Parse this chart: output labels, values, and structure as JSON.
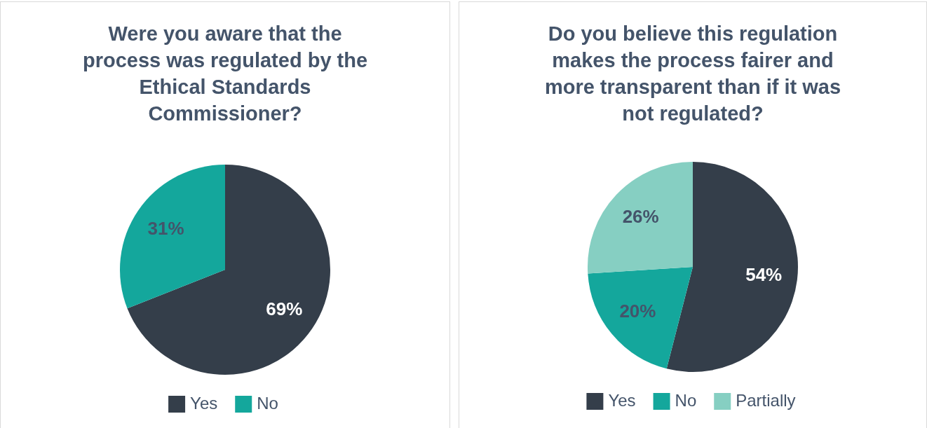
{
  "chart_data": [
    {
      "type": "pie",
      "title": "Were you aware that the process was regulated by the Ethical Standards Commissioner?",
      "categories": [
        "Yes",
        "No"
      ],
      "values": [
        69,
        31
      ],
      "value_labels": [
        "69%",
        "31%"
      ],
      "colors": [
        "#343e4a",
        "#14a79c"
      ],
      "legend": "bottom"
    },
    {
      "type": "pie",
      "title": "Do you believe this regulation makes the process fairer and more transparent than if it was not regulated?",
      "categories": [
        "Yes",
        "No",
        "Partially"
      ],
      "values": [
        54,
        20,
        26
      ],
      "value_labels": [
        "54%",
        "20%",
        "26%"
      ],
      "colors": [
        "#343e4a",
        "#14a79c",
        "#86cfc2"
      ],
      "legend": "bottom"
    }
  ]
}
